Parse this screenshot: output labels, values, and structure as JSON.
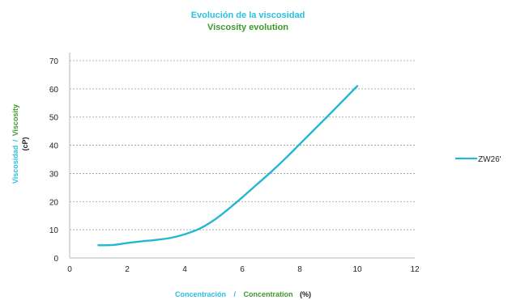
{
  "chart_data": {
    "type": "line",
    "title": "Evolución de la  viscosidad",
    "subtitle": "Viscosity evolution",
    "xlabel": {
      "es": "Concentración",
      "separator": "/",
      "en": "Concentration",
      "unit": "(%)"
    },
    "ylabel": {
      "es": "Viscosidad",
      "separator": "/",
      "en": "Viscosity",
      "unit": "(cP)"
    },
    "xlim": [
      0,
      12
    ],
    "ylim": [
      0,
      70
    ],
    "xticks": [
      0,
      2,
      4,
      6,
      8,
      10,
      12
    ],
    "yticks": [
      0,
      10,
      20,
      30,
      40,
      50,
      60,
      70
    ],
    "grid": true,
    "legend_position": "right",
    "series": [
      {
        "name": "ZW26'",
        "color": "#25b6d6",
        "x": [
          1,
          1.5,
          2,
          2.5,
          3,
          3.5,
          4,
          4.5,
          5,
          5.5,
          6,
          6.5,
          7,
          7.5,
          8,
          8.5,
          9,
          9.5,
          10
        ],
        "y": [
          4.5,
          4.6,
          5.3,
          5.9,
          6.4,
          7.1,
          8.4,
          10.3,
          13.3,
          17.2,
          21.5,
          26.0,
          30.5,
          35.3,
          40.4,
          45.5,
          50.6,
          55.8,
          61.0
        ]
      }
    ]
  }
}
